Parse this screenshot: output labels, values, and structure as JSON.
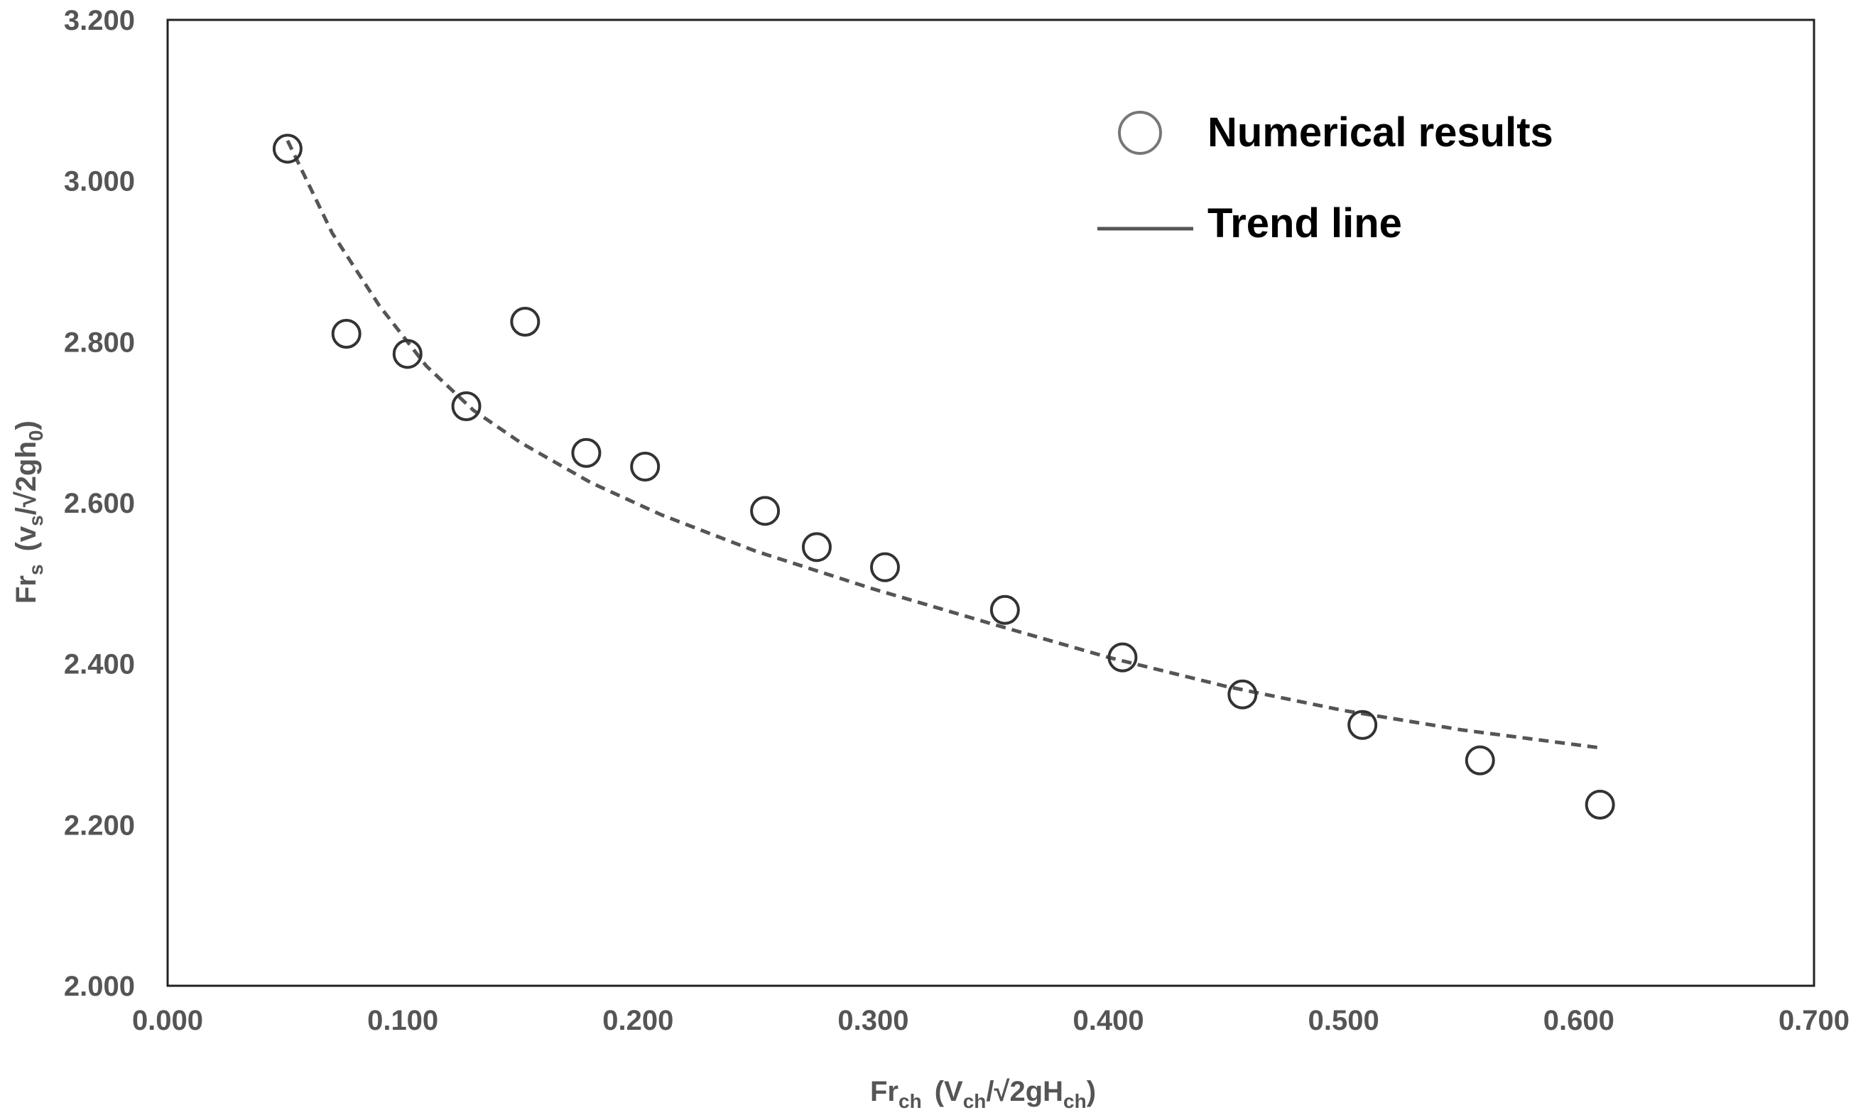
{
  "chart_data": {
    "type": "scatter",
    "x_ticks": [
      "0.000",
      "0.100",
      "0.200",
      "0.300",
      "0.400",
      "0.500",
      "0.600",
      "0.700"
    ],
    "y_ticks": [
      "2.000",
      "2.200",
      "2.400",
      "2.600",
      "2.800",
      "3.000",
      "3.200"
    ],
    "xlim": [
      0,
      0.7
    ],
    "ylim": [
      2.0,
      3.2
    ],
    "xlabel": {
      "main": "Fr",
      "sub": "ch",
      "rest": "(V",
      "rest_sub": "ch",
      "slash": "/√2gH",
      "slash_sub": "ch",
      "close": ")"
    },
    "ylabel": {
      "main": "Fr",
      "sub": "s",
      "rest": "(v",
      "rest_sub": "s",
      "slash": "/√2gh",
      "slash_sub": "0",
      "close": ")"
    },
    "grid": false,
    "legend_position": "top-right",
    "series": [
      {
        "name": "Numerical results",
        "kind": "markers",
        "marker": "open-circle",
        "color": "#333333",
        "x": [
          0.051,
          0.076,
          0.102,
          0.127,
          0.152,
          0.178,
          0.203,
          0.254,
          0.276,
          0.305,
          0.356,
          0.406,
          0.457,
          0.508,
          0.558,
          0.609
        ],
        "y": [
          3.04,
          2.81,
          2.785,
          2.72,
          2.825,
          2.662,
          2.645,
          2.59,
          2.545,
          2.52,
          2.467,
          2.408,
          2.362,
          2.324,
          2.28,
          2.225
        ]
      },
      {
        "name": "Trend line",
        "kind": "line",
        "style": "dashed",
        "color": "#555555",
        "x": [
          0.051,
          0.07,
          0.09,
          0.11,
          0.13,
          0.15,
          0.18,
          0.21,
          0.25,
          0.3,
          0.35,
          0.4,
          0.45,
          0.5,
          0.55,
          0.608
        ],
        "y": [
          3.05,
          2.935,
          2.845,
          2.77,
          2.715,
          2.675,
          2.625,
          2.585,
          2.54,
          2.493,
          2.45,
          2.408,
          2.372,
          2.342,
          2.318,
          2.296
        ]
      }
    ]
  }
}
